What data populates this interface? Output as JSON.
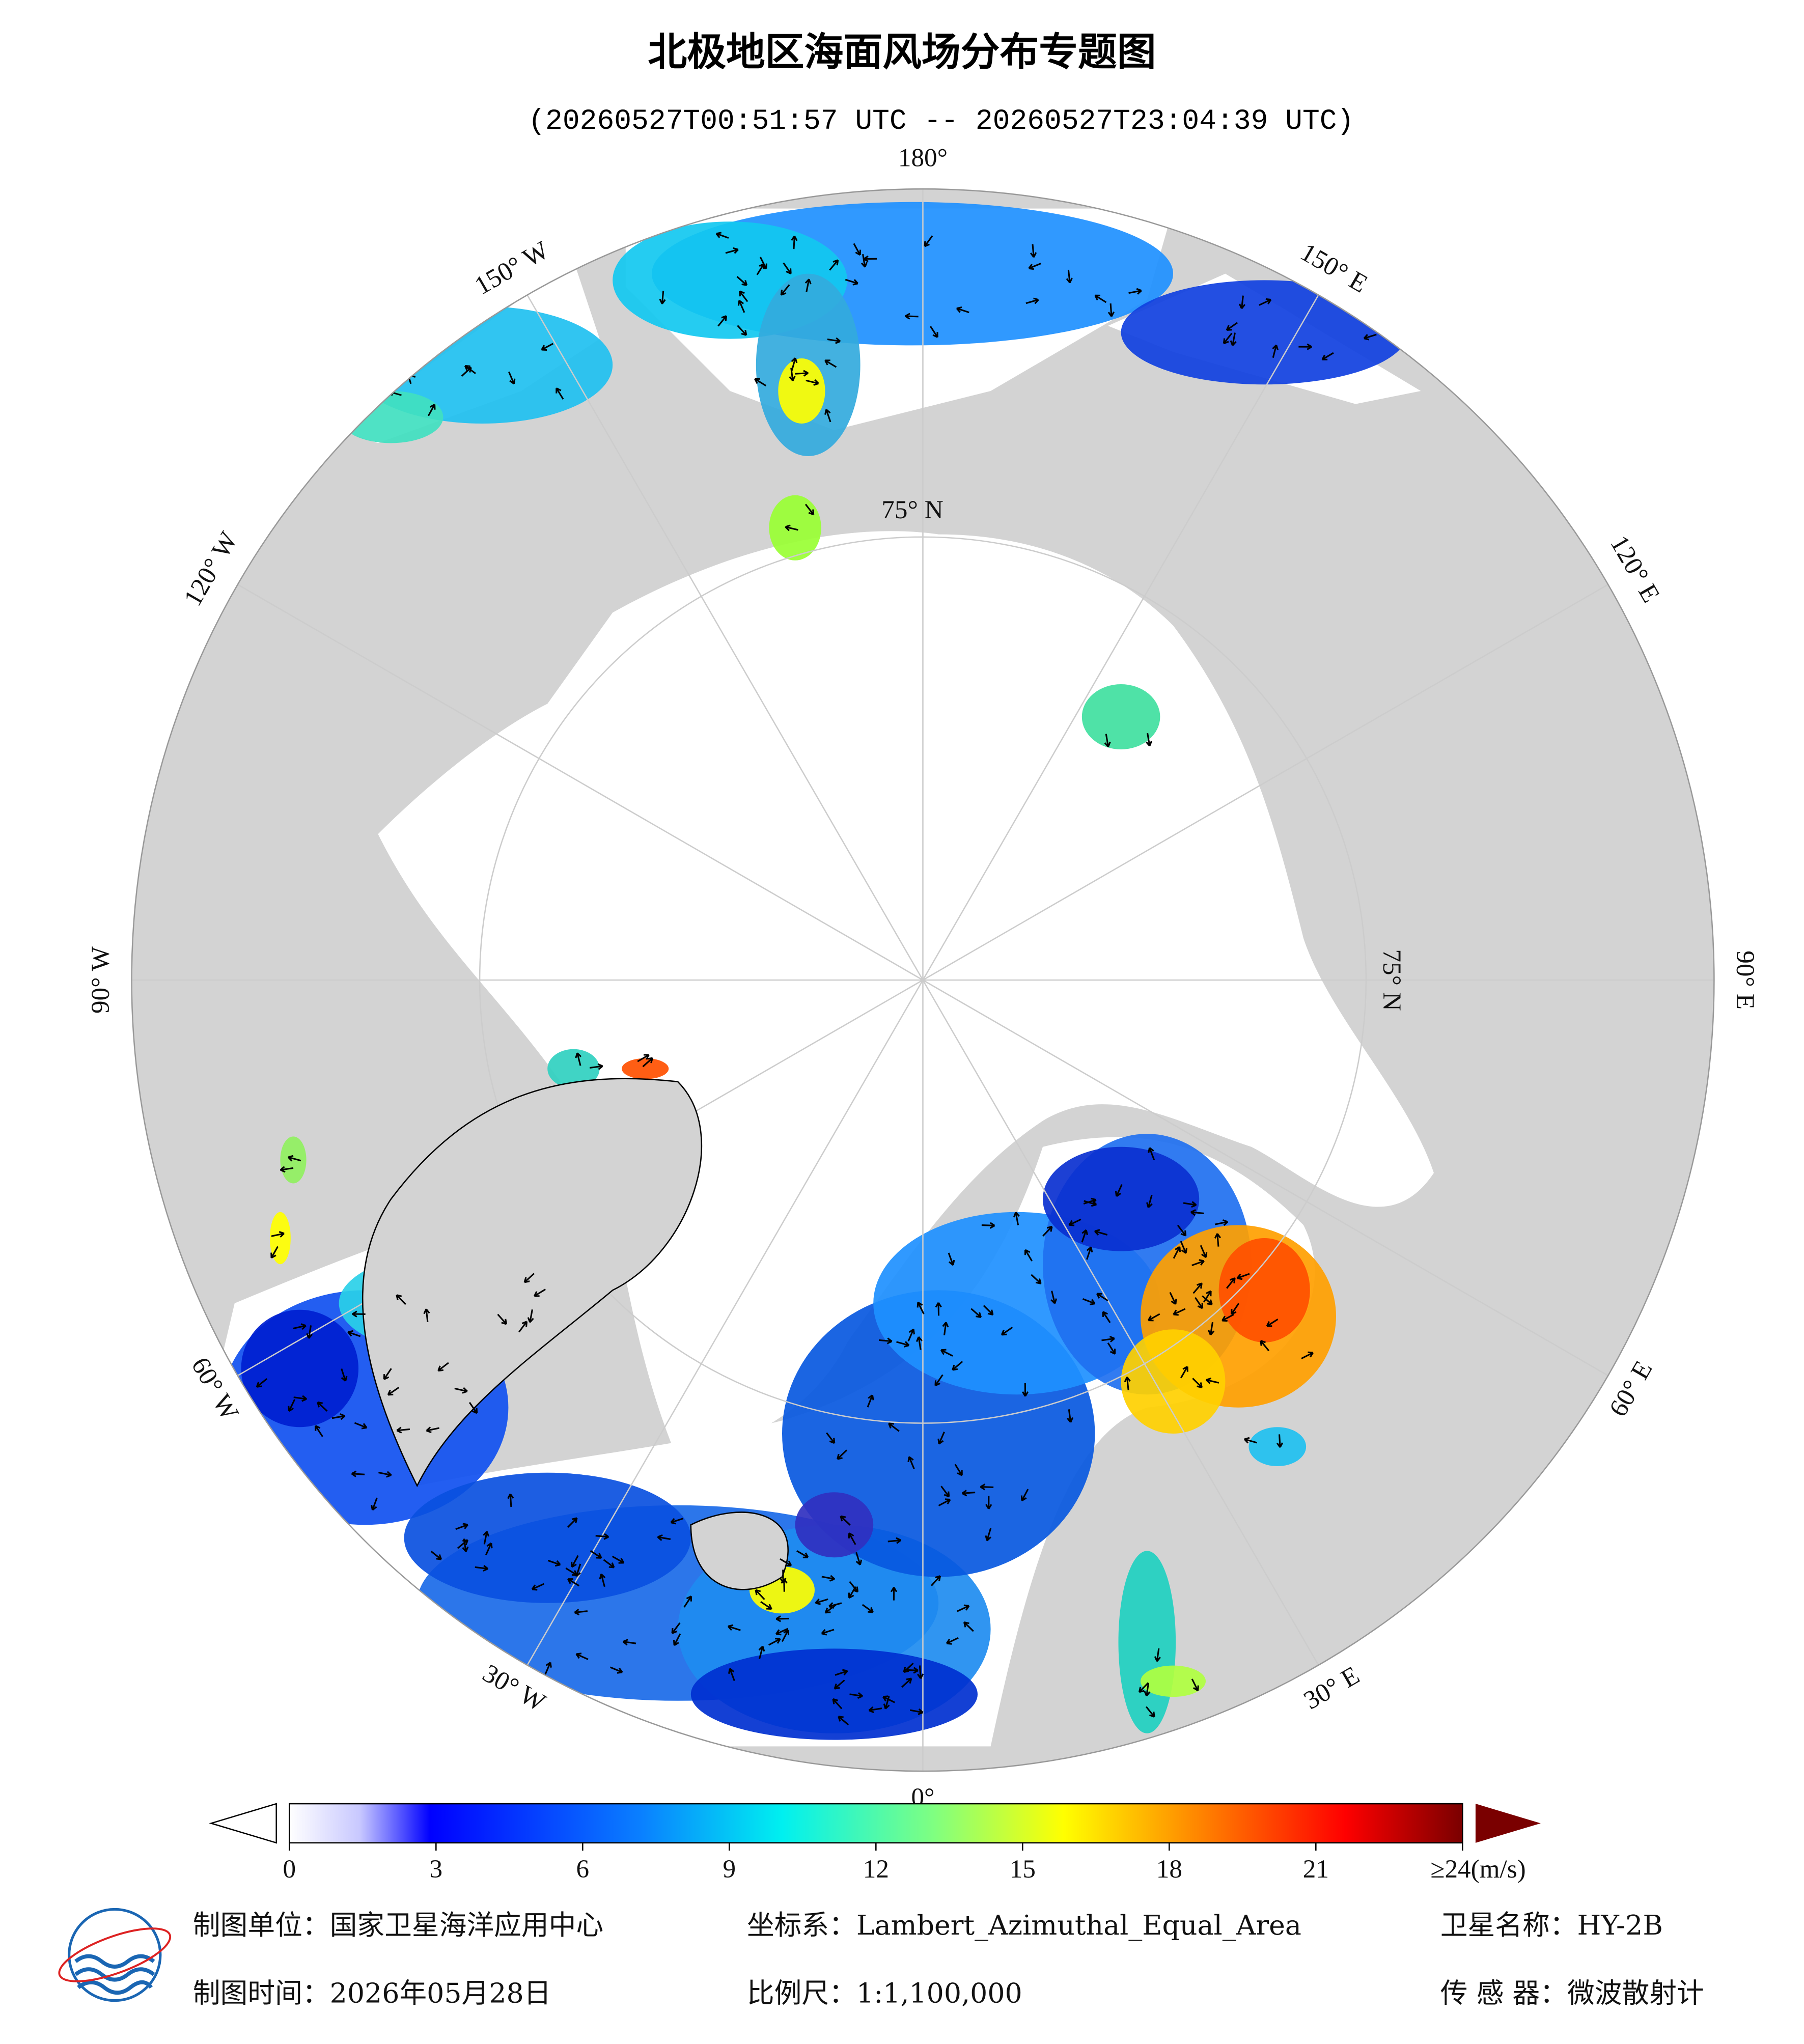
{
  "header": {
    "title": "北极地区海面风场分布专题图",
    "time_range": "(20260527T00:51:57 UTC -- 20260527T23:04:39 UTC)"
  },
  "map": {
    "longitude_labels": [
      {
        "lon": 180,
        "text": "180°"
      },
      {
        "lon": 150,
        "text": "150° E"
      },
      {
        "lon": 120,
        "text": "120° E"
      },
      {
        "lon": 90,
        "text": "90° E"
      },
      {
        "lon": 60,
        "text": "60° E"
      },
      {
        "lon": 30,
        "text": "30° E"
      },
      {
        "lon": 0,
        "text": "0°"
      },
      {
        "lon": -30,
        "text": "30° W"
      },
      {
        "lon": -60,
        "text": "60° W"
      },
      {
        "lon": -90,
        "text": "90° W"
      },
      {
        "lon": -120,
        "text": "120° W"
      },
      {
        "lon": -150,
        "text": "150° W"
      }
    ],
    "latitude_label": "75° N"
  },
  "colorbar": {
    "range": [
      0,
      24
    ],
    "ticks": [
      0,
      3,
      6,
      9,
      12,
      15,
      18,
      21,
      {
        "value": 24,
        "label": "≥24(m/s)"
      }
    ]
  },
  "footer": {
    "unit": "制图单位：国家卫星海洋应用中心",
    "projection": "坐标系：Lambert_Azimuthal_Equal_Area",
    "satellite": "卫星名称：HY-2B",
    "date": "制图时间：2026年05月28日",
    "scale": "比例尺：1:1,100,000",
    "sensor": "传 感 器：微波散射计"
  }
}
